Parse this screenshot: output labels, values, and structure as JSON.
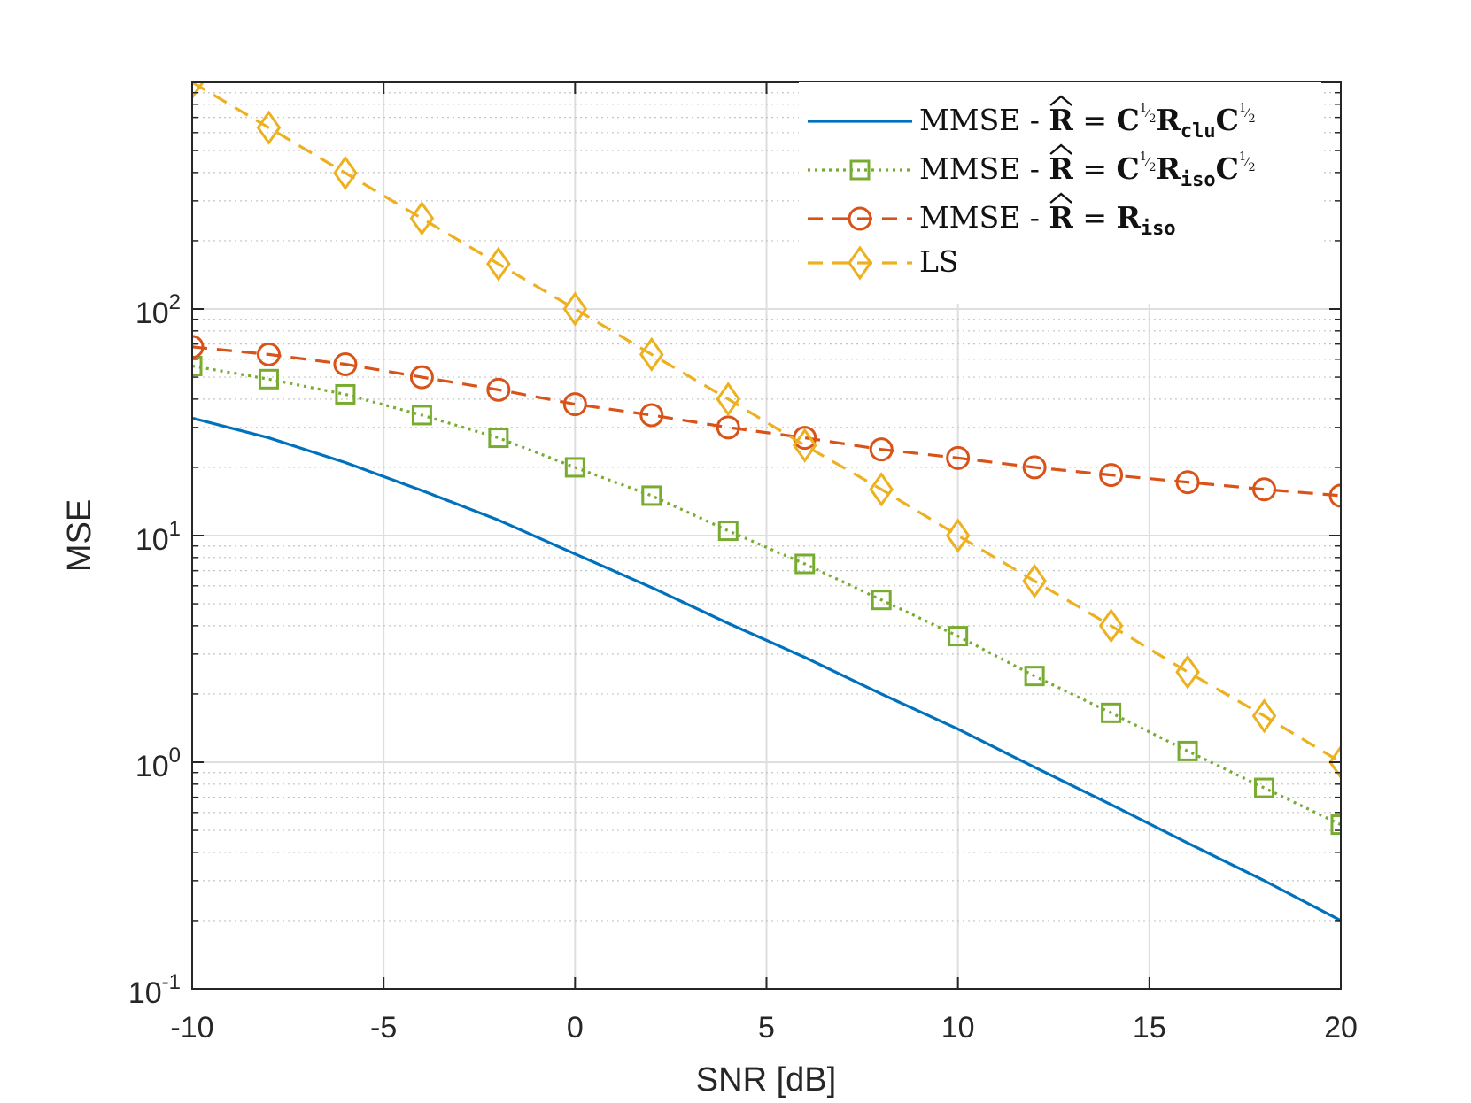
{
  "chart_data": {
    "type": "line",
    "title": "",
    "xlabel": "SNR [dB]",
    "ylabel": "MSE",
    "xlim": [
      -10,
      20
    ],
    "ylim": [
      0.1,
      1000
    ],
    "yscale": "log",
    "grid": true,
    "legend_position": "top-right",
    "x_ticks": [
      -10,
      -5,
      0,
      5,
      10,
      15,
      20
    ],
    "x_tick_labels": [
      "-10",
      "-5",
      "0",
      "5",
      "10",
      "15",
      "20"
    ],
    "y_ticks": [
      0.1,
      1,
      10,
      100
    ],
    "y_tick_labels": [
      {
        "base": "10",
        "exp": "-1"
      },
      {
        "base": "10",
        "exp": "0"
      },
      {
        "base": "10",
        "exp": "1"
      },
      {
        "base": "10",
        "exp": "2"
      }
    ],
    "series": [
      {
        "name": "MMSE - R̂ = C^{1/2} R_clu C^{1/2}",
        "legend": {
          "prefix": "MMSE - ",
          "mat": "R",
          "sub": "clu",
          "form": "sandwich"
        },
        "color": "#0072BD",
        "style": "solid",
        "marker": "none",
        "x": [
          -10,
          -8,
          -6,
          -4,
          -2,
          0,
          2,
          4,
          6,
          8,
          10,
          12,
          14,
          16,
          18,
          20
        ],
        "values": [
          33,
          27,
          21,
          15.8,
          11.7,
          8.3,
          5.9,
          4.1,
          2.9,
          2.0,
          1.4,
          0.95,
          0.65,
          0.44,
          0.3,
          0.2
        ]
      },
      {
        "name": "MMSE - R̂ = C^{1/2} R_iso C^{1/2}",
        "legend": {
          "prefix": "MMSE - ",
          "mat": "R",
          "sub": "iso",
          "form": "sandwich"
        },
        "color": "#77AC30",
        "style": "dotted",
        "marker": "square",
        "x": [
          -10,
          -8,
          -6,
          -4,
          -2,
          0,
          2,
          4,
          6,
          8,
          10,
          12,
          14,
          16,
          18,
          20
        ],
        "values": [
          56,
          49,
          42,
          34,
          27,
          20,
          15,
          10.5,
          7.5,
          5.2,
          3.6,
          2.4,
          1.65,
          1.12,
          0.77,
          0.53
        ]
      },
      {
        "name": "MMSE - R̂ = R_iso",
        "legend": {
          "prefix": "MMSE - ",
          "mat": "R",
          "sub": "iso",
          "form": "plain"
        },
        "color": "#D95319",
        "style": "dashed",
        "marker": "circle",
        "x": [
          -10,
          -8,
          -6,
          -4,
          -2,
          0,
          2,
          4,
          6,
          8,
          10,
          12,
          14,
          16,
          18,
          20
        ],
        "values": [
          68,
          63,
          57,
          50,
          44,
          38,
          34,
          30,
          27,
          24,
          22,
          20,
          18.5,
          17.2,
          16.0,
          15.0
        ]
      },
      {
        "name": "LS",
        "legend": {
          "prefix": "LS",
          "form": "text"
        },
        "color": "#EDB120",
        "style": "dashed",
        "marker": "diamond",
        "x": [
          -10,
          -8,
          -6,
          -4,
          -2,
          0,
          2,
          4,
          6,
          8,
          10,
          12,
          14,
          16,
          18,
          20
        ],
        "values": [
          1000,
          631,
          398,
          251,
          158,
          100,
          63,
          40,
          25,
          16,
          10,
          6.3,
          4.0,
          2.5,
          1.6,
          1.0
        ]
      }
    ]
  }
}
